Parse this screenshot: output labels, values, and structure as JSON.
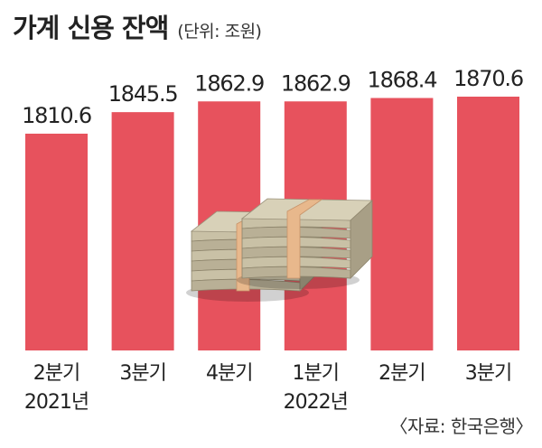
{
  "header": {
    "title": "가계 신용 잔액",
    "unit": "(단위: 조원)"
  },
  "source": "〈자료: 한국은행〉",
  "colors": {
    "bar": "#e7525d",
    "text": "#222222",
    "money_paper": "#c9c1a6",
    "money_band": "#e8b88c"
  },
  "chart_data": {
    "type": "bar",
    "title": "가계 신용 잔액",
    "unit": "조원",
    "categories": [
      "2분기",
      "3분기",
      "4분기",
      "1분기",
      "2분기",
      "3분기"
    ],
    "year_labels": [
      "2021년",
      "",
      "",
      "2022년",
      "",
      ""
    ],
    "values": [
      1810.6,
      1845.5,
      1862.9,
      1862.9,
      1868.4,
      1870.6
    ],
    "value_labels": [
      "1810.6",
      "1845.5",
      "1862.9",
      "1862.9",
      "1868.4",
      "1870.6"
    ],
    "series": [
      {
        "values": [
          1810.6,
          1845.5,
          1862.9,
          1862.9,
          1868.4,
          1870.6
        ]
      }
    ],
    "grid": false,
    "legend": "none",
    "decoration": "money-stack-icon"
  }
}
